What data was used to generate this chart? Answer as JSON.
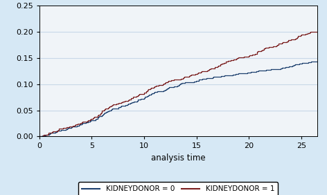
{
  "title": "",
  "xlabel": "analysis time",
  "ylabel": "",
  "xlim": [
    0,
    26.5
  ],
  "ylim": [
    0,
    0.25
  ],
  "yticks": [
    0.0,
    0.05,
    0.1,
    0.15,
    0.2,
    0.25
  ],
  "xticks": [
    0,
    5,
    10,
    15,
    20,
    25
  ],
  "fig_bg_color": "#d6e8f5",
  "plot_bg_color": "#f0f4f8",
  "line0_color": "#1c3f6e",
  "line1_color": "#7a1e1e",
  "legend_label0": "KIDNEYDONOR = 0",
  "legend_label1": "KIDNEYDONOR = 1",
  "grid_color": "#c8d8e8",
  "spine_color": "#000000"
}
